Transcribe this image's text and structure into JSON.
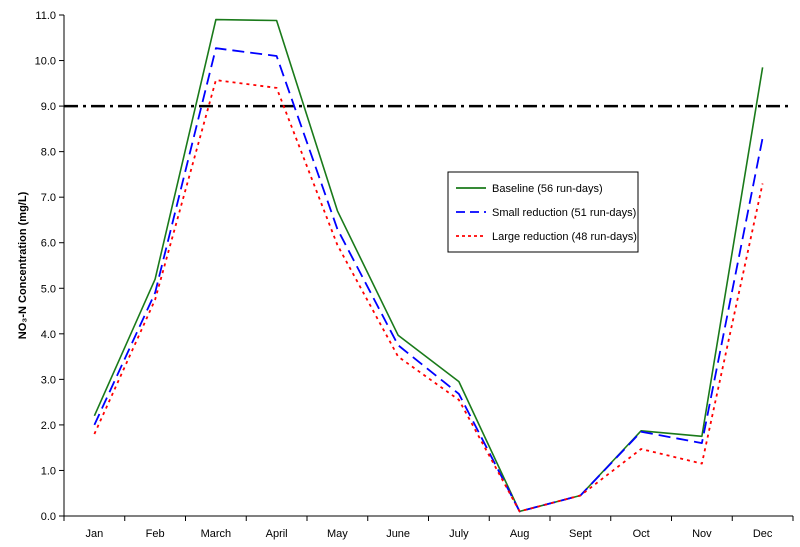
{
  "chart_data": {
    "type": "line",
    "categories": [
      "Jan",
      "Feb",
      "March",
      "April",
      "May",
      "June",
      "July",
      "Aug",
      "Sept",
      "Oct",
      "Nov",
      "Dec"
    ],
    "ylabel": "NO₃-N Concentration (mg/L)",
    "ylim": [
      0,
      11
    ],
    "yticks": [
      "0.0",
      "1.0",
      "2.0",
      "3.0",
      "4.0",
      "5.0",
      "6.0",
      "7.0",
      "8.0",
      "9.0",
      "10.0",
      "11.0"
    ],
    "grid": false,
    "legend_position": "right",
    "series": [
      {
        "name": "Baseline (56 run-days)",
        "color": "#1a7a1a",
        "style": "solid",
        "values": [
          2.2,
          5.2,
          10.9,
          10.88,
          6.7,
          3.97,
          2.95,
          0.1,
          0.45,
          1.87,
          1.75,
          9.85
        ]
      },
      {
        "name": "Small reduction (51 run-days)",
        "color": "#0000ff",
        "style": "dashed",
        "values": [
          2.0,
          4.9,
          10.27,
          10.1,
          6.3,
          3.75,
          2.68,
          0.1,
          0.45,
          1.85,
          1.6,
          8.3
        ]
      },
      {
        "name": "Large reduction (48 run-days)",
        "color": "#ff0000",
        "style": "dotted",
        "values": [
          1.8,
          4.75,
          9.57,
          9.4,
          5.95,
          3.5,
          2.55,
          0.1,
          0.45,
          1.47,
          1.15,
          7.3
        ]
      }
    ],
    "reference_line": {
      "value": 9.0,
      "color": "#000000",
      "style": "dash-dot"
    }
  }
}
